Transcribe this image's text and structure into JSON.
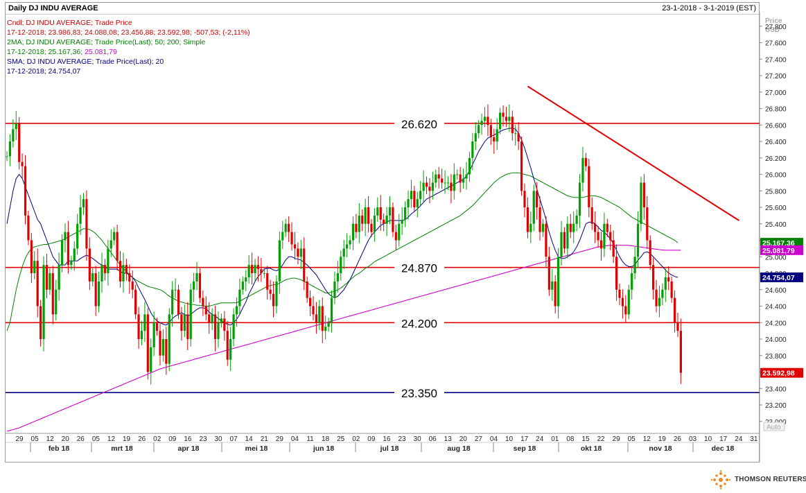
{
  "header": {
    "title": "Daily DJ INDU AVERAGE",
    "date_range": "23-1-2018 - 3-1-2019 (EST)"
  },
  "legend": {
    "line1": "Cndl; DJ INDU AVERAGE; Trade Price",
    "line2": "17-12-2018; 23.986,83; 24.088,08; 23.456,88; 23.592,98; -507,53; (-2,11%)",
    "line3": "2MA; DJ INDU AVERAGE; Trade Price(Last); 50; 200; Simple",
    "line4_prefix": "17-12-2018; 25.167,36; ",
    "line4_suffix": "25.081,79",
    "line5": "SMA; DJ INDU AVERAGE; Trade Price(Last); 20",
    "line6": "17-12-2018; 24.754,07",
    "colors": {
      "line1": "#d00000",
      "line2": "#d00000",
      "line3": "#008000",
      "line4": "#008000",
      "line4_suffix": "#cc00cc",
      "line5": "#000080",
      "line6": "#000080"
    }
  },
  "axis": {
    "price_label": "Price",
    "currency_label": "USD",
    "auto_label": "Auto",
    "y_ticks": [
      "27.800",
      "27.600",
      "27.400",
      "27.200",
      "27.000",
      "26.800",
      "26.600",
      "26.400",
      "26.200",
      "26.000",
      "25.800",
      "25.600",
      "25.400",
      "25.200",
      "25.000",
      "24.800",
      "24.600",
      "24.400",
      "24.200",
      "24.000",
      "23.800",
      "23.600",
      "23.400",
      "23.200",
      "23.000"
    ],
    "day_labels": [
      "29",
      "05",
      "12",
      "20",
      "26",
      "05",
      "12",
      "19",
      "26",
      "02",
      "09",
      "16",
      "23",
      "30",
      "07",
      "14",
      "21",
      "29",
      "04",
      "11",
      "18",
      "25",
      "02",
      "09",
      "16",
      "23",
      "30",
      "06",
      "13",
      "20",
      "27",
      "04",
      "10",
      "17",
      "24",
      "01",
      "08",
      "15",
      "22",
      "29",
      "05",
      "12",
      "19",
      "26",
      "03",
      "10",
      "17",
      "24",
      "31"
    ],
    "month_labels": [
      "feb 18",
      "mrt 18",
      "apr 18",
      "mei 18",
      "jun 18",
      "jul 18",
      "aug 18",
      "sep 18",
      "okt 18",
      "nov 18",
      "dec 18"
    ]
  },
  "levels": {
    "l26620": "26.620",
    "l24870": "24.870",
    "l24200": "24.200",
    "l23350": "23.350"
  },
  "value_tags": {
    "ma50": "25.167,36",
    "ma200": "25.081,79",
    "sma20": "24.754,07",
    "last": "23.592,98"
  },
  "brand": {
    "name": "THOMSON REUTERS"
  },
  "chart_data": {
    "type": "candlestick",
    "title": "Daily DJ INDU AVERAGE",
    "date_range": "23-1-2018 - 3-1-2019 (EST)",
    "ylabel": "Price USD",
    "ylim": [
      22.88,
      27.95
    ],
    "y_unit": "thousands",
    "grid": false,
    "colors": {
      "up": "#00a000",
      "down": "#e00000",
      "ma50": "#008000",
      "ma200": "#cc00cc",
      "sma20": "#000080",
      "resistance": "#e00000",
      "support": "#000080",
      "trendline": "#e00000"
    },
    "last_candle": {
      "date": "17-12-2018",
      "open": 23986.83,
      "high": 24088.08,
      "low": 23456.88,
      "close": 23592.98
    },
    "horizontal_levels": [
      {
        "value": 26.62,
        "label": "26.620",
        "color": "#e00000"
      },
      {
        "value": 24.87,
        "label": "24.870",
        "color": "#e00000"
      },
      {
        "value": 24.2,
        "label": "24.200",
        "color": "#e00000"
      },
      {
        "value": 23.35,
        "label": "23.350",
        "color": "#000080"
      }
    ],
    "trendline": {
      "from": {
        "slot": 170,
        "y": 27.07
      },
      "to": {
        "slot": 239,
        "y": 25.44
      }
    },
    "closes": [
      26.22,
      26.4,
      26.55,
      26.62,
      26.15,
      26.1,
      25.5,
      25.2,
      24.8,
      24.95,
      24.4,
      24.0,
      24.9,
      24.6,
      24.8,
      24.3,
      24.6,
      24.9,
      25.2,
      25.3,
      24.9,
      24.95,
      25.1,
      25.4,
      25.6,
      25.7,
      25.1,
      24.7,
      24.8,
      24.4,
      24.7,
      24.9,
      24.8,
      25.1,
      25.2,
      25.3,
      24.95,
      24.7,
      24.9,
      24.8,
      24.7,
      24.6,
      24.3,
      24.0,
      24.1,
      24.3,
      23.6,
      23.9,
      24.2,
      24.1,
      23.8,
      24.0,
      23.7,
      24.3,
      24.6,
      24.6,
      24.3,
      24.1,
      24.3,
      24.0,
      24.6,
      24.7,
      24.8,
      24.5,
      24.4,
      24.3,
      24.2,
      24.3,
      24.0,
      24.2,
      24.25,
      24.1,
      23.75,
      24.0,
      24.3,
      24.4,
      24.6,
      24.7,
      24.75,
      24.9,
      24.8,
      24.9,
      24.85,
      24.8,
      24.8,
      24.6,
      24.55,
      24.4,
      24.7,
      25.2,
      25.3,
      25.4,
      25.3,
      25.15,
      25.1,
      25.0,
      25.1,
      24.7,
      24.5,
      24.4,
      24.3,
      24.2,
      24.4,
      24.1,
      24.15,
      24.2,
      24.5,
      24.7,
      24.8,
      25.0,
      25.1,
      25.15,
      25.2,
      25.4,
      25.3,
      25.5,
      25.4,
      25.6,
      25.4,
      25.3,
      25.5,
      25.6,
      25.45,
      25.4,
      25.5,
      25.6,
      25.3,
      25.2,
      25.4,
      25.45,
      25.6,
      25.7,
      25.8,
      25.6,
      25.7,
      25.8,
      25.9,
      25.85,
      25.8,
      25.9,
      26.0,
      25.95,
      25.9,
      25.9,
      25.9,
      25.8,
      26.0,
      26.0,
      25.9,
      25.95,
      26.0,
      26.2,
      26.4,
      26.5,
      26.6,
      26.65,
      26.7,
      26.6,
      26.45,
      26.4,
      26.55,
      26.75,
      26.7,
      26.65,
      26.7,
      26.5,
      26.5,
      26.4,
      25.8,
      25.6,
      25.3,
      25.4,
      25.8,
      25.6,
      25.3,
      25.4,
      25.0,
      24.6,
      24.7,
      24.4,
      25.0,
      25.3,
      25.1,
      25.4,
      25.3,
      25.4,
      25.5,
      25.9,
      26.2,
      26.1,
      25.6,
      25.4,
      25.3,
      25.2,
      25.1,
      25.4,
      25.3,
      25.2,
      25.0,
      24.6,
      24.5,
      24.4,
      24.3,
      24.6,
      24.8,
      25.0,
      25.4,
      25.9,
      25.6,
      25.2,
      24.9,
      24.6,
      24.4,
      24.5,
      24.6,
      24.75,
      24.7,
      24.5,
      24.2,
      24.1,
      23.59
    ],
    "sma20": [
      25.4,
      25.6,
      25.8,
      25.95,
      26.0,
      25.95,
      25.85,
      25.75,
      25.65,
      25.55,
      25.45,
      25.4,
      25.3,
      25.2,
      25.1,
      25.0,
      24.95,
      24.9,
      24.9,
      24.9,
      24.95,
      24.95,
      24.95,
      24.95,
      24.98,
      25.0,
      25.02,
      25.0,
      24.98,
      24.95,
      24.92,
      24.9,
      24.88,
      24.85,
      24.85,
      24.85,
      24.85,
      24.82,
      24.8,
      24.8,
      24.78,
      24.75,
      24.7,
      24.62,
      24.55,
      24.48,
      24.4,
      24.32,
      24.26,
      24.22,
      24.2,
      24.18,
      24.17,
      24.2,
      24.25,
      24.28,
      24.3,
      24.32,
      24.3,
      24.28,
      24.3,
      24.33,
      24.36,
      24.38,
      24.38,
      24.37,
      24.33,
      24.3,
      24.28,
      24.25,
      24.22,
      24.2,
      24.18,
      24.17,
      24.2,
      24.24,
      24.3,
      24.38,
      24.45,
      24.55,
      24.62,
      24.7,
      24.76,
      24.8,
      24.85,
      24.86,
      24.86,
      24.84,
      24.83,
      24.85,
      24.9,
      24.96,
      25.0,
      25.0,
      24.98,
      24.97,
      24.96,
      24.93,
      24.9,
      24.86,
      24.82,
      24.78,
      24.72,
      24.66,
      24.6,
      24.55,
      24.52,
      24.5,
      24.52,
      24.56,
      24.6,
      24.66,
      24.72,
      24.8,
      24.88,
      24.96,
      25.04,
      25.12,
      25.2,
      25.26,
      25.3,
      25.34,
      25.38,
      25.4,
      25.42,
      25.44,
      25.44,
      25.44,
      25.44,
      25.44,
      25.45,
      25.48,
      25.52,
      25.55,
      25.58,
      25.62,
      25.66,
      25.7,
      25.72,
      25.74,
      25.76,
      25.78,
      25.8,
      25.82,
      25.84,
      25.86,
      25.88,
      25.9,
      25.92,
      25.94,
      25.98,
      26.04,
      26.12,
      26.2,
      26.28,
      26.34,
      26.4,
      26.44,
      26.46,
      26.48,
      26.5,
      26.52,
      26.54,
      26.55,
      26.56,
      26.56,
      26.55,
      26.5,
      26.42,
      26.32,
      26.2,
      26.08,
      25.95,
      25.82,
      25.7,
      25.58,
      25.45,
      25.3,
      25.18,
      25.08,
      25.0,
      24.98,
      24.98,
      25.0,
      25.02,
      25.06,
      25.12,
      25.2,
      25.3,
      25.4,
      25.42,
      25.42,
      25.4,
      25.36,
      25.32,
      25.3,
      25.26,
      25.22,
      25.16,
      25.08,
      25.0,
      24.94,
      24.9,
      24.88,
      24.88,
      24.9,
      24.96,
      25.0,
      25.05,
      25.06,
      25.04,
      25.0,
      24.96,
      24.92,
      24.88,
      24.84,
      24.8,
      24.78,
      24.76,
      24.75
    ],
    "ma50": [
      24.1,
      24.2,
      24.4,
      24.6,
      24.75,
      24.88,
      24.98,
      25.05,
      25.1,
      25.12,
      25.13,
      25.14,
      25.15,
      25.15,
      25.16,
      25.17,
      25.18,
      25.19,
      25.2,
      25.22,
      25.24,
      25.26,
      25.28,
      25.3,
      25.32,
      25.34,
      25.34,
      25.33,
      25.31,
      25.28,
      25.24,
      25.2,
      25.15,
      25.1,
      25.05,
      25.0,
      24.95,
      24.9,
      24.86,
      24.82,
      24.78,
      24.75,
      24.72,
      24.7,
      24.68,
      24.66,
      24.64,
      24.63,
      24.62,
      24.61,
      24.6,
      24.58,
      24.55,
      24.52,
      24.5,
      24.48,
      24.46,
      24.45,
      24.44,
      24.43,
      24.42,
      24.42,
      24.41,
      24.41,
      24.4,
      24.4,
      24.4,
      24.41,
      24.42,
      24.43,
      24.44,
      24.44,
      24.44,
      24.44,
      24.44,
      24.44,
      24.46,
      24.48,
      24.5,
      24.52,
      24.54,
      24.56,
      24.58,
      24.6,
      24.62,
      24.64,
      24.65,
      24.66,
      24.66,
      24.68,
      24.7,
      24.72,
      24.73,
      24.74,
      24.74,
      24.73,
      24.72,
      24.7,
      24.68,
      24.66,
      24.64,
      24.62,
      24.6,
      24.58,
      24.56,
      24.56,
      24.57,
      24.58,
      24.6,
      24.62,
      24.65,
      24.68,
      24.72,
      24.75,
      24.78,
      24.8,
      24.83,
      24.86,
      24.88,
      24.91,
      24.94,
      24.96,
      24.98,
      25.0,
      25.02,
      25.04,
      25.06,
      25.08,
      25.1,
      25.12,
      25.14,
      25.16,
      25.18,
      25.2,
      25.22,
      25.24,
      25.26,
      25.28,
      25.3,
      25.32,
      25.34,
      25.36,
      25.38,
      25.4,
      25.42,
      25.44,
      25.46,
      25.48,
      25.5,
      25.53,
      25.56,
      25.59,
      25.62,
      25.66,
      25.7,
      25.74,
      25.78,
      25.82,
      25.86,
      25.9,
      25.93,
      25.96,
      25.98,
      26.0,
      26.01,
      26.02,
      26.02,
      26.02,
      26.01,
      26.0,
      25.99,
      25.98,
      25.96,
      25.94,
      25.92,
      25.9,
      25.88,
      25.86,
      25.84,
      25.82,
      25.8,
      25.78,
      25.76,
      25.74,
      25.73,
      25.72,
      25.72,
      25.72,
      25.72,
      25.73,
      25.74,
      25.74,
      25.74,
      25.73,
      25.72,
      25.7,
      25.68,
      25.66,
      25.64,
      25.62,
      25.6,
      25.57,
      25.54,
      25.51,
      25.48,
      25.46,
      25.44,
      25.42,
      25.4,
      25.38,
      25.36,
      25.34,
      25.32,
      25.3,
      25.28,
      25.26,
      25.24,
      25.22,
      25.2,
      25.17
    ],
    "ma200": [
      22.88,
      22.9,
      22.92,
      22.95,
      22.98,
      23.01,
      23.04,
      23.07,
      23.1,
      23.13,
      23.16,
      23.19,
      23.22,
      23.25,
      23.28,
      23.31,
      23.34,
      23.37,
      23.4,
      23.43,
      23.46,
      23.49,
      23.52,
      23.55,
      23.58,
      23.61,
      23.64,
      23.66,
      23.68,
      23.7,
      23.72,
      23.74,
      23.76,
      23.78,
      23.8,
      23.82,
      23.84,
      23.86,
      23.88,
      23.9,
      23.92,
      23.94,
      23.96,
      23.98,
      24.0,
      24.02,
      24.04,
      24.06,
      24.08,
      24.1,
      24.12,
      24.14,
      24.16,
      24.18,
      24.2,
      24.22,
      24.24,
      24.26,
      24.28,
      24.3,
      24.32,
      24.34,
      24.36,
      24.38,
      24.4,
      24.42,
      24.44,
      24.46,
      24.48,
      24.5,
      24.52,
      24.54,
      24.56,
      24.58,
      24.6,
      24.62,
      24.64,
      24.66,
      24.68,
      24.7,
      24.72,
      24.74,
      24.76,
      24.78,
      24.8,
      24.82,
      24.84,
      24.86,
      24.88,
      24.9,
      24.92,
      24.94,
      24.96,
      24.98,
      25.0,
      25.02,
      25.04,
      25.06,
      25.08,
      25.1,
      25.12,
      25.13,
      25.14,
      25.14,
      25.14,
      25.14,
      25.13,
      25.12,
      25.11,
      25.1,
      25.09,
      25.08,
      25.08,
      25.08,
      25.08
    ],
    "price_tags": [
      {
        "label": "25.167,36",
        "value": 25.17
      },
      {
        "label": "25.081,79",
        "value": 25.08
      },
      {
        "label": "24.754,07",
        "value": 24.75
      },
      {
        "label": "23.592,98",
        "value": 23.59
      }
    ]
  }
}
